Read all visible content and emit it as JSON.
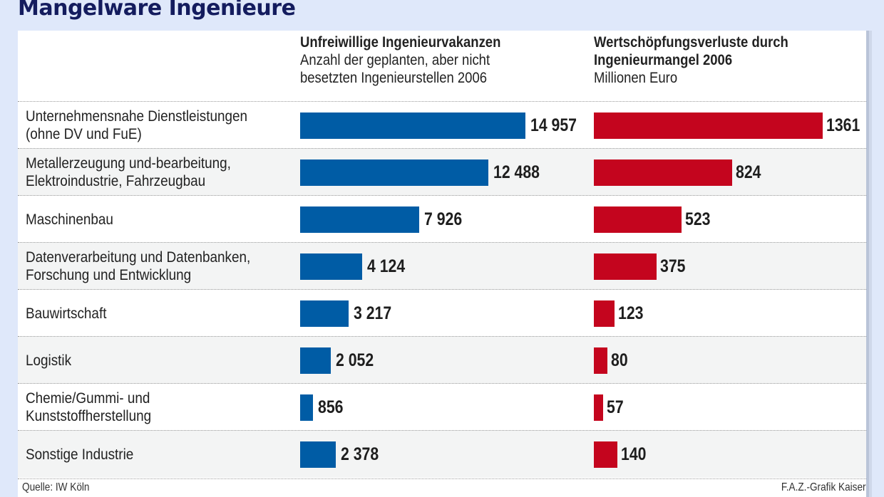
{
  "title": "Mangelware Ingenieure",
  "chart_data": [
    {
      "type": "bar",
      "orientation": "horizontal",
      "title": "Unfreiwillige Ingenieurvakanzen",
      "subtitle": "Anzahl der geplanten, aber nicht besetzten Ingenieurstellen 2006",
      "categories": [
        "Unternehmensnahe Dienstleistungen\n(ohne DV und FuE)",
        "Metallerzeugung und-bearbeitung,\nElektroindustrie, Fahrzeugbau",
        "Maschinenbau",
        "Datenverarbeitung und Datenbanken,\nForschung und Entwicklung",
        "Bauwirtschaft",
        "Logistik",
        "Chemie/Gummi- und\nKunststoffherstellung",
        "Sonstige Industrie"
      ],
      "values": [
        14957,
        12488,
        7926,
        4124,
        3217,
        2052,
        856,
        2378
      ],
      "value_labels": [
        "14 957",
        "12 488",
        "7 926",
        "4 124",
        "3 217",
        "2 052",
        "856",
        "2 378"
      ],
      "color": "#005ca5",
      "xlim": [
        0,
        14957
      ]
    },
    {
      "type": "bar",
      "orientation": "horizontal",
      "title": "Wertschöpfungsverluste durch Ingenieurmangel 2006",
      "subtitle": "Millionen Euro",
      "categories": [
        "Unternehmensnahe Dienstleistungen\n(ohne DV und FuE)",
        "Metallerzeugung und-bearbeitung,\nElektroindustrie, Fahrzeugbau",
        "Maschinenbau",
        "Datenverarbeitung und Datenbanken,\nForschung und Entwicklung",
        "Bauwirtschaft",
        "Logistik",
        "Chemie/Gummi- und\nKunststoffherstellung",
        "Sonstige Industrie"
      ],
      "values": [
        1361,
        824,
        523,
        375,
        123,
        80,
        57,
        140
      ],
      "value_labels": [
        "1361",
        "824",
        "523",
        "375",
        "123",
        "80",
        "57",
        "140"
      ],
      "color": "#c4051e",
      "xlim": [
        0,
        1361
      ]
    }
  ],
  "headers": {
    "left_title": "Unfreiwillige Ingenieurvakanzen",
    "left_sub1": "Anzahl der geplanten, aber nicht",
    "left_sub2": "besetzten Ingenieurstellen 2006",
    "right_title1": "Wertschöpfungsverluste durch",
    "right_title2": "Ingenieurmangel 2006",
    "right_sub": "Millionen Euro"
  },
  "footer": {
    "source": "Quelle: IW Köln",
    "credit": "F.A.Z.-Grafik Kaiser"
  }
}
